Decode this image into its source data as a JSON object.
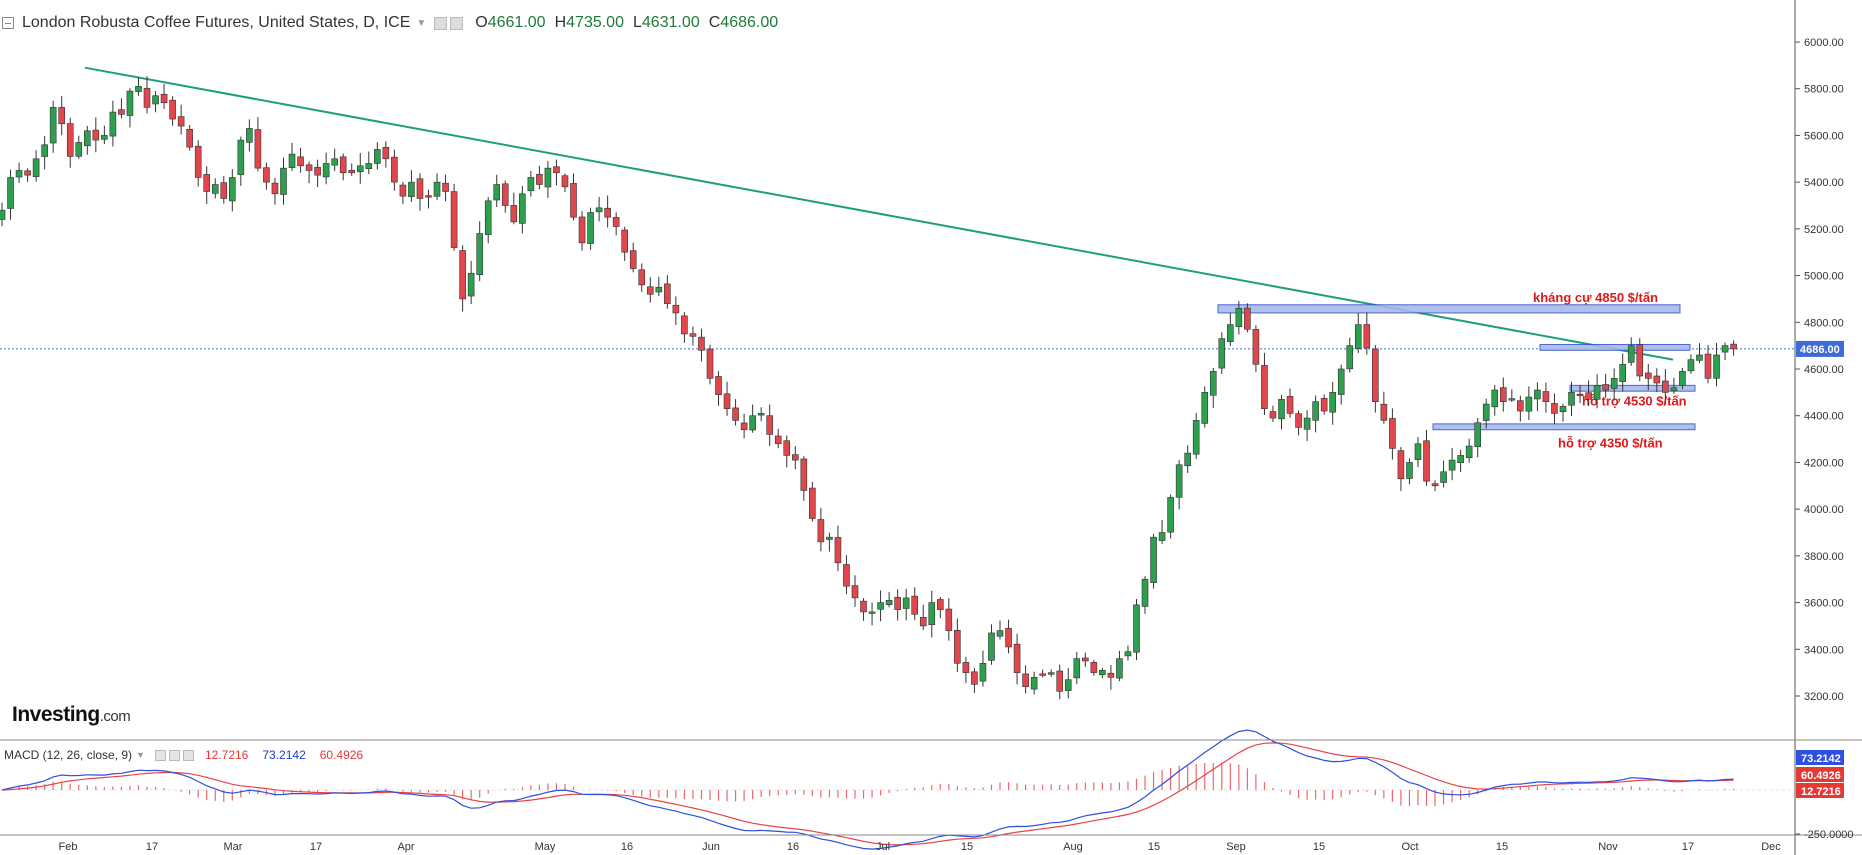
{
  "header": {
    "title": "London Robusta Coffee Futures, United States, D, ICE",
    "open_label": "O",
    "open": "4661.00",
    "high_label": "H",
    "high": "4735.00",
    "low_label": "L",
    "low": "4631.00",
    "close_label": "C",
    "close": "4686.00"
  },
  "logo": {
    "brand": "Investing",
    "suffix": ".com"
  },
  "macd_header": {
    "label": "MACD (12, 26, close, 9)",
    "val1": "12.7216",
    "val2": "73.2142",
    "val3": "60.4926"
  },
  "colors": {
    "up": "#2e9e4f",
    "down": "#e0474c",
    "trendline": "#1e9e7a",
    "zone_fill": "#a9b9ec",
    "zone_stroke": "#3557c9",
    "annotation": "#e01818",
    "macd_line": "#2f4fe0",
    "signal_line": "#e8434a",
    "price_tag": "#3f6ad8"
  },
  "chart_data": {
    "type": "candlestick",
    "ylim": [
      3100,
      6100
    ],
    "yticks": [
      "6000.00",
      "5800.00",
      "5600.00",
      "5400.00",
      "5200.00",
      "5000.00",
      "4800.00",
      "4600.00",
      "4400.00",
      "4200.00",
      "4000.00",
      "3800.00",
      "3600.00",
      "3400.00",
      "3200.00"
    ],
    "xticks": [
      "Feb",
      "17",
      "Mar",
      "17",
      "Apr",
      "May",
      "16",
      "Jun",
      "16",
      "Jul",
      "15",
      "Aug",
      "15",
      "Sep",
      "15",
      "Oct",
      "15",
      "Nov",
      "17",
      "Dec"
    ],
    "last_price": "4686.00",
    "closes": [
      5280,
      5420,
      5450,
      5430,
      5500,
      5560,
      5720,
      5650,
      5510,
      5570,
      5620,
      5580,
      5600,
      5700,
      5690,
      5790,
      5810,
      5720,
      5770,
      5740,
      5670,
      5640,
      5550,
      5420,
      5360,
      5390,
      5330,
      5420,
      5580,
      5630,
      5460,
      5400,
      5350,
      5460,
      5520,
      5470,
      5450,
      5430,
      5480,
      5500,
      5440,
      5440,
      5470,
      5480,
      5540,
      5500,
      5400,
      5340,
      5400,
      5330,
      5340,
      5400,
      5360,
      5120,
      4900,
      5010,
      5180,
      5320,
      5390,
      5300,
      5230,
      5350,
      5420,
      5390,
      5460,
      5440,
      5380,
      5250,
      5140,
      5270,
      5290,
      5250,
      5210,
      5100,
      5030,
      4960,
      4920,
      4950,
      4880,
      4840,
      4750,
      4740,
      4680,
      4560,
      4490,
      4430,
      4380,
      4340,
      4400,
      4410,
      4320,
      4280,
      4230,
      4210,
      4080,
      3960,
      3860,
      3880,
      3770,
      3670,
      3620,
      3560,
      3560,
      3600,
      3610,
      3570,
      3620,
      3550,
      3500,
      3600,
      3570,
      3480,
      3340,
      3300,
      3250,
      3340,
      3470,
      3480,
      3410,
      3300,
      3240,
      3280,
      3290,
      3300,
      3220,
      3270,
      3360,
      3350,
      3300,
      3310,
      3280,
      3360,
      3390,
      3590,
      3700,
      3880,
      3900,
      4050,
      4190,
      4240,
      4380,
      4500,
      4590,
      4730,
      4790,
      4860,
      4770,
      4620,
      4430,
      4390,
      4470,
      4410,
      4350,
      4390,
      4460,
      4420,
      4500,
      4600,
      4700,
      4790,
      4690,
      4460,
      4380,
      4260,
      4130,
      4200,
      4280,
      4120,
      4100,
      4160,
      4210,
      4230,
      4270,
      4370,
      4450,
      4510,
      4460,
      4470,
      4420,
      4480,
      4510,
      4460,
      4410,
      4440,
      4500,
      4490,
      4470,
      4530,
      4510,
      4560,
      4620,
      4700,
      4570,
      4560,
      4540,
      4500,
      4520,
      4590,
      4640,
      4660,
      4560,
      4660,
      4700,
      4686
    ]
  }
}
